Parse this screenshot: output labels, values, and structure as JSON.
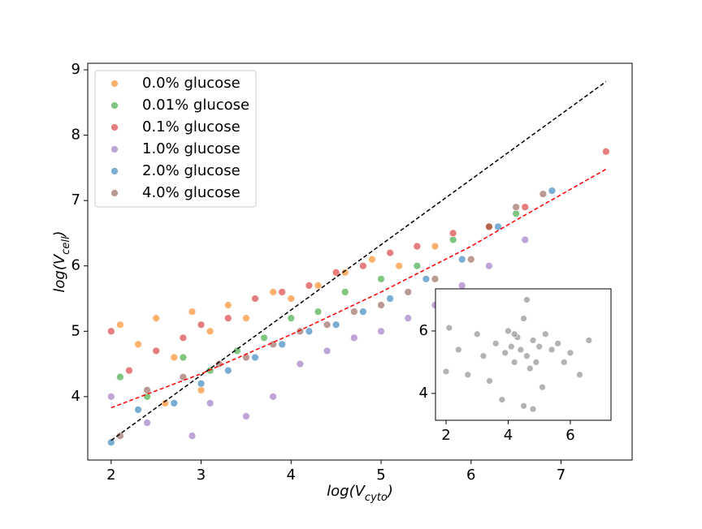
{
  "chart_data": [
    {
      "type": "scatter",
      "legend": "upper left",
      "marker_alpha": 0.6,
      "xlabel": [
        "log(V",
        "cyto",
        ")"
      ],
      "ylabel": [
        "log(V",
        "cell",
        ")"
      ],
      "xlim": [
        1.74,
        7.79
      ],
      "ylim": [
        3.03,
        9.1
      ],
      "xticks": [
        2,
        3,
        4,
        5,
        6,
        7
      ],
      "yticks": [
        4,
        5,
        6,
        7,
        8,
        9
      ],
      "series": [
        {
          "name": "0.0% glucose",
          "color": "#ff7f0e",
          "x": [
            2.1,
            2.3,
            2.5,
            2.7,
            2.9,
            3.1,
            3.3,
            3.5,
            3.8,
            4.0,
            4.3,
            4.6,
            4.9,
            5.2,
            5.6,
            2.6,
            3.0
          ],
          "values": [
            5.1,
            4.8,
            5.2,
            4.6,
            5.3,
            5.0,
            5.4,
            5.2,
            5.6,
            5.5,
            5.7,
            5.9,
            6.1,
            6.0,
            6.3,
            3.9,
            4.1
          ]
        },
        {
          "name": "0.01% glucose",
          "color": "#2ca02c",
          "x": [
            2.1,
            2.4,
            2.8,
            3.1,
            3.4,
            3.7,
            4.0,
            4.3,
            4.6,
            5.0,
            5.4,
            5.8,
            6.2,
            6.5
          ],
          "values": [
            4.3,
            4.0,
            4.6,
            4.4,
            4.7,
            4.9,
            5.2,
            5.3,
            5.6,
            5.8,
            6.0,
            6.4,
            6.6,
            6.8
          ]
        },
        {
          "name": "0.1% glucose",
          "color": "#d62728",
          "x": [
            2.0,
            2.2,
            2.5,
            2.8,
            3.0,
            3.3,
            3.6,
            3.9,
            4.2,
            4.5,
            4.8,
            5.1,
            5.4,
            5.8,
            6.2,
            6.6,
            7.5
          ],
          "values": [
            5.0,
            4.4,
            4.7,
            4.9,
            5.1,
            5.2,
            5.5,
            5.6,
            5.7,
            5.9,
            6.0,
            6.2,
            6.3,
            6.5,
            6.6,
            6.9,
            7.75
          ]
        },
        {
          "name": "1.0% glucose",
          "color": "#9467bd",
          "x": [
            2.0,
            2.4,
            2.9,
            3.1,
            3.5,
            3.8,
            4.1,
            4.4,
            4.7,
            5.0,
            5.3,
            5.6,
            5.9,
            6.2,
            6.6
          ],
          "values": [
            4.0,
            3.6,
            3.4,
            3.9,
            3.7,
            4.0,
            4.5,
            4.7,
            4.9,
            5.0,
            5.2,
            5.4,
            5.7,
            6.0,
            6.4
          ]
        },
        {
          "name": "2.0% glucose",
          "color": "#1f77b4",
          "x": [
            2.0,
            2.3,
            2.7,
            3.0,
            3.3,
            3.6,
            3.9,
            4.2,
            4.5,
            4.8,
            5.1,
            5.5,
            5.9,
            6.3,
            6.9
          ],
          "values": [
            3.3,
            3.8,
            3.9,
            4.2,
            4.4,
            4.6,
            4.8,
            5.0,
            5.1,
            5.3,
            5.5,
            5.8,
            6.1,
            6.6,
            7.15
          ]
        },
        {
          "name": "4.0% glucose",
          "color": "#8c564b",
          "x": [
            2.1,
            2.4,
            2.8,
            3.2,
            3.5,
            3.8,
            4.1,
            4.4,
            4.7,
            5.0,
            5.3,
            5.6,
            6.0,
            6.5,
            6.8
          ],
          "values": [
            3.4,
            4.1,
            4.3,
            4.5,
            4.6,
            4.8,
            5.0,
            5.1,
            5.3,
            5.4,
            5.6,
            5.8,
            6.1,
            6.9,
            7.1
          ]
        }
      ],
      "lines": [
        {
          "color": "#000000",
          "dash": true,
          "x": [
            2.0,
            7.5
          ],
          "y": [
            3.33,
            8.82
          ]
        },
        {
          "color": "#ff0000",
          "dash": true,
          "x": [
            2.0,
            3.0,
            4.0,
            5.0,
            6.0,
            6.5,
            7.5
          ],
          "y": [
            3.83,
            4.35,
            4.95,
            5.6,
            6.3,
            6.7,
            7.48
          ]
        }
      ]
    },
    {
      "type": "scatter",
      "marker_alpha": 0.6,
      "xlim": [
        1.66,
        7.31
      ],
      "ylim": [
        3.14,
        7.35
      ],
      "xticks": [
        2,
        4,
        6
      ],
      "yticks": [
        4,
        6
      ],
      "series": [
        {
          "color": "#808080",
          "x": [
            2.0,
            2.1,
            2.4,
            2.7,
            3.0,
            3.2,
            3.4,
            3.6,
            3.8,
            3.9,
            4.0,
            4.1,
            4.2,
            4.3,
            4.4,
            4.5,
            4.5,
            4.6,
            4.7,
            4.8,
            4.9,
            5.0,
            5.1,
            5.2,
            5.4,
            5.6,
            5.8,
            6.0,
            6.3,
            6.6,
            4.6,
            4.2,
            4.8
          ],
          "values": [
            4.7,
            6.1,
            5.4,
            4.6,
            5.9,
            5.2,
            4.4,
            5.6,
            3.8,
            5.3,
            6.0,
            5.5,
            5.0,
            5.8,
            5.4,
            3.6,
            6.4,
            5.2,
            4.8,
            5.7,
            5.0,
            5.5,
            4.2,
            5.9,
            5.4,
            5.6,
            5.0,
            5.3,
            4.6,
            5.7,
            7.0,
            5.9,
            3.5
          ]
        }
      ]
    }
  ]
}
